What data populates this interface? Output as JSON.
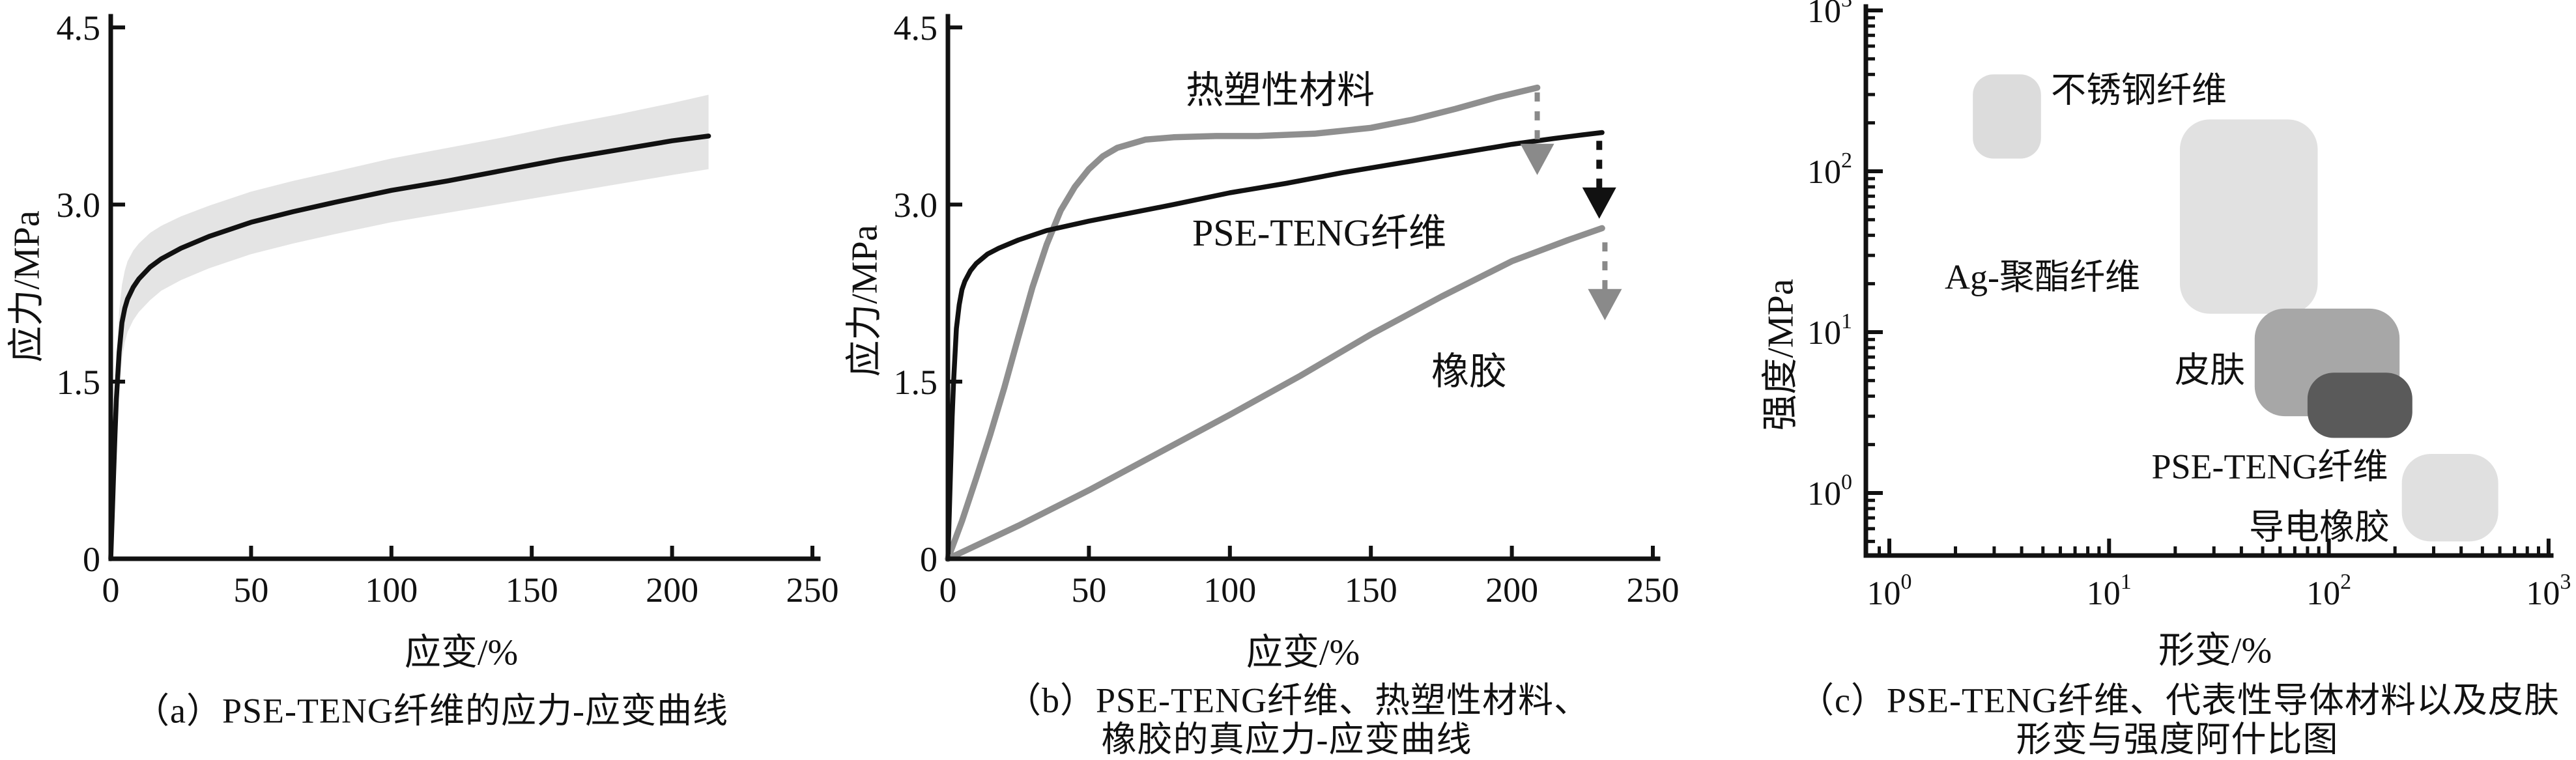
{
  "figure_background": "#ffffff",
  "ink_color": "#111111",
  "gray_curve_color": "#8f8f8f",
  "chart_data": [
    {
      "type": "line",
      "panel": "a",
      "caption": "（a）PSE-TENG纤维的应力-应变曲线",
      "xlabel": "应变/%",
      "ylabel": "应力/MPa",
      "xlim": [
        0,
        250
      ],
      "ylim": [
        0,
        4.5
      ],
      "xticks": [
        0,
        50,
        100,
        150,
        200,
        250
      ],
      "yticks": [
        0,
        1.5,
        3.0,
        4.5
      ],
      "ytick_labels": [
        "0",
        "1.5",
        "3.0",
        "4.5"
      ],
      "grid": false,
      "series": [
        {
          "name": "PSE-TENG纤维",
          "color": "#111111",
          "x": [
            0,
            0.5,
            1,
            1.5,
            2,
            3,
            4,
            5,
            6,
            8,
            10,
            14,
            18,
            25,
            35,
            50,
            65,
            80,
            100,
            120,
            140,
            160,
            180,
            200,
            213
          ],
          "y": [
            0,
            0.35,
            0.7,
            1.05,
            1.35,
            1.75,
            2.0,
            2.12,
            2.2,
            2.3,
            2.37,
            2.47,
            2.54,
            2.63,
            2.73,
            2.85,
            2.94,
            3.02,
            3.12,
            3.2,
            3.29,
            3.38,
            3.46,
            3.54,
            3.58
          ]
        }
      ],
      "band": {
        "color": "#e4e4e4",
        "upper": [
          0,
          0.45,
          0.9,
          1.3,
          1.65,
          2.1,
          2.32,
          2.44,
          2.52,
          2.61,
          2.67,
          2.76,
          2.82,
          2.9,
          2.99,
          3.11,
          3.2,
          3.28,
          3.39,
          3.48,
          3.57,
          3.67,
          3.76,
          3.86,
          3.93
        ],
        "lower": [
          0,
          0.27,
          0.55,
          0.85,
          1.1,
          1.45,
          1.7,
          1.83,
          1.92,
          2.02,
          2.09,
          2.19,
          2.27,
          2.36,
          2.46,
          2.58,
          2.67,
          2.75,
          2.85,
          2.93,
          3.01,
          3.09,
          3.17,
          3.25,
          3.3
        ]
      }
    },
    {
      "type": "line",
      "panel": "b",
      "caption_line1": "（b）PSE-TENG纤维、热塑性材料、",
      "caption_line2": "橡胶的真应力-应变曲线",
      "xlabel": "应变/%",
      "ylabel": "应力/MPa",
      "xlim": [
        0,
        250
      ],
      "ylim": [
        0,
        4.5
      ],
      "xticks": [
        0,
        50,
        100,
        150,
        200,
        250
      ],
      "yticks": [
        0,
        1.5,
        3.0,
        4.5
      ],
      "ytick_labels": [
        "0",
        "1.5",
        "3.0",
        "4.5"
      ],
      "grid": false,
      "series": [
        {
          "name": "热塑性材料",
          "color": "#8f8f8f",
          "x": [
            0,
            5,
            10,
            15,
            20,
            25,
            30,
            35,
            40,
            45,
            50,
            55,
            60,
            70,
            80,
            95,
            110,
            130,
            150,
            165,
            180,
            195,
            209
          ],
          "y": [
            0,
            0.32,
            0.68,
            1.05,
            1.45,
            1.88,
            2.3,
            2.66,
            2.95,
            3.15,
            3.3,
            3.41,
            3.48,
            3.55,
            3.57,
            3.58,
            3.58,
            3.6,
            3.65,
            3.72,
            3.81,
            3.91,
            3.99
          ]
        },
        {
          "name": "PSE-TENG纤维",
          "color": "#111111",
          "x": [
            0,
            0.5,
            1,
            1.5,
            2,
            3,
            4,
            5,
            6,
            8,
            10,
            14,
            18,
            25,
            35,
            50,
            65,
            80,
            100,
            120,
            140,
            160,
            180,
            200,
            215,
            225,
            232
          ],
          "y": [
            0,
            0.4,
            0.8,
            1.2,
            1.5,
            1.95,
            2.15,
            2.28,
            2.35,
            2.44,
            2.5,
            2.58,
            2.63,
            2.7,
            2.78,
            2.86,
            2.93,
            3.0,
            3.1,
            3.18,
            3.27,
            3.35,
            3.43,
            3.51,
            3.56,
            3.59,
            3.61
          ]
        },
        {
          "name": "橡胶",
          "color": "#8f8f8f",
          "x": [
            0,
            25,
            50,
            75,
            100,
            125,
            150,
            175,
            200,
            220,
            232
          ],
          "y": [
            0,
            0.28,
            0.58,
            0.9,
            1.22,
            1.55,
            1.9,
            2.22,
            2.52,
            2.7,
            2.8
          ]
        }
      ],
      "fracture_arrows": [
        {
          "at_series": "热塑性材料",
          "x": 209,
          "y_from": 3.95,
          "y_to": 3.25,
          "color": "#8a8a8a"
        },
        {
          "at_series": "PSE-TENG纤维",
          "x": 231,
          "y_from": 3.54,
          "y_to": 2.88,
          "color": "#111111"
        },
        {
          "at_series": "橡胶",
          "x": 233,
          "y_from": 2.68,
          "y_to": 2.02,
          "color": "#8a8a8a"
        }
      ]
    },
    {
      "type": "bubble",
      "panel": "c",
      "caption_line1": "（c）PSE-TENG纤维、代表性导体材料以及皮肤",
      "caption_line2": "形变与强度阿什比图",
      "xlabel": "形变/%",
      "ylabel": "强度/MPa",
      "xscale": "log",
      "yscale": "log",
      "xlim": [
        1,
        1000
      ],
      "ylim": [
        0.4,
        1000
      ],
      "xtick_exponents": [
        0,
        1,
        2,
        3
      ],
      "ytick_exponents": [
        0,
        1,
        2,
        3
      ],
      "tick_base": "10",
      "grid": false,
      "bubbles": [
        {
          "label": "不锈钢纤维",
          "strain_range": [
            2.4,
            4.9
          ],
          "strength_range": [
            120,
            400
          ],
          "color": "#dcdcdc"
        },
        {
          "label": "Ag-聚酯纤维",
          "strain_range": [
            21,
            89
          ],
          "strength_range": [
            13,
            210
          ],
          "color": "#e1e1e1"
        },
        {
          "label": "皮肤",
          "strain_range": [
            46,
            210
          ],
          "strength_range": [
            3,
            14
          ],
          "color": "#a7a7a7"
        },
        {
          "label": "PSE-TENG纤维",
          "strain_range": [
            80,
            240
          ],
          "strength_range": [
            2.2,
            5.6
          ],
          "color": "#5a5a5a"
        },
        {
          "label": "导电橡胶",
          "strain_range": [
            215,
            590
          ],
          "strength_range": [
            0.5,
            1.75
          ],
          "color": "#e0e0e0"
        }
      ]
    }
  ]
}
